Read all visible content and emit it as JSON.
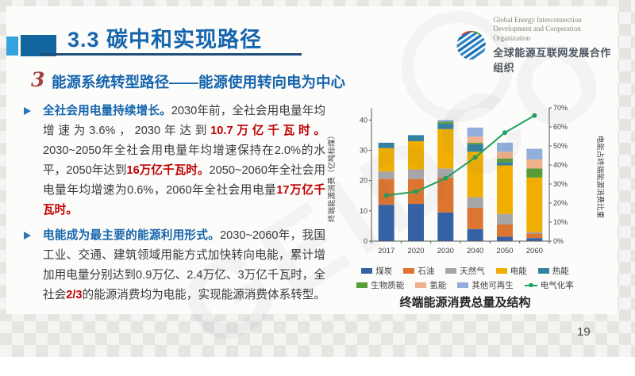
{
  "slide": {
    "page_number": "19",
    "watermark": "GEIDCO"
  },
  "header": {
    "title": "3.3 碳中和实现路径",
    "logo_line1": "Global Energy Interconnection",
    "logo_line2": "Development and Cooperation Organization",
    "logo_line3": "全球能源互联网发展合作组织"
  },
  "section": {
    "badge": "3",
    "title": "能源系统转型路径——能源使用转向电为中心"
  },
  "bullets": [
    {
      "segments": [
        {
          "text": "全社会用电量持续增长。",
          "style": "lead"
        },
        {
          "text": "2030年前，全社会用电量年均增速为3.6%，2030年达到",
          "style": "normal"
        },
        {
          "text": "10.7万亿千瓦时。",
          "style": "em"
        },
        {
          "text": "2030~2050年全社会用电量年均增速保持在2.0%的水平，2050年达到",
          "style": "normal"
        },
        {
          "text": "16万亿千瓦时。",
          "style": "em"
        },
        {
          "text": "2050~2060年全社会用电量年均增速为0.6%，2060年全社会用电量",
          "style": "normal"
        },
        {
          "text": "17万亿千瓦时。",
          "style": "em"
        }
      ]
    },
    {
      "segments": [
        {
          "text": "电能成为最主要的能源利用形式。",
          "style": "lead"
        },
        {
          "text": "2030~2060年，我国工业、交通、建筑领域用能方式加快转向电能，累计增加用电量分别达到0.9万亿、2.4万亿、3万亿千瓦时，全社会",
          "style": "normal"
        },
        {
          "text": "2/3",
          "style": "em"
        },
        {
          "text": "的能源消费均为电能，实现能源消费体系转型。",
          "style": "normal"
        }
      ]
    }
  ],
  "chart": {
    "caption": "终端能源消费总量及结构",
    "y_left_title": "终端能源消费（亿吨标煤）",
    "y_right_title": "电能占终端能源消费比重"
  },
  "chart_data": {
    "type": "bar",
    "stacked": true,
    "title": "终端能源消费总量及结构",
    "categories": [
      "2017",
      "2020",
      "2030",
      "2040",
      "2050",
      "2060"
    ],
    "series": [
      {
        "name": "煤炭",
        "color": "#3562A5",
        "values": [
          12,
          12.3,
          9.5,
          4,
          1.5,
          1
        ]
      },
      {
        "name": "石油",
        "color": "#DC7530",
        "values": [
          8.5,
          8.2,
          11.5,
          7,
          4,
          1.5
        ]
      },
      {
        "name": "天然气",
        "color": "#A6A6A6",
        "values": [
          2.5,
          3.2,
          3,
          3.5,
          3.5,
          0.5
        ]
      },
      {
        "name": "电能",
        "color": "#F0AF00",
        "values": [
          7.7,
          9.3,
          13,
          15,
          16,
          18
        ]
      },
      {
        "name": "热能",
        "color": "#35829E",
        "values": [
          1.8,
          2,
          1.8,
          2.5,
          1,
          0
        ]
      },
      {
        "name": "生物质能",
        "color": "#569D38",
        "values": [
          0,
          0,
          0.6,
          0.5,
          1.3,
          3
        ]
      },
      {
        "name": "氢能",
        "color": "#F2B08C",
        "values": [
          0,
          0,
          0,
          2,
          2.2,
          3
        ]
      },
      {
        "name": "其他可再生",
        "color": "#92AEDC",
        "values": [
          0,
          0,
          0.6,
          3,
          3,
          3.5
        ]
      }
    ],
    "line_series": {
      "name": "电气化率",
      "color": "#1FA15F",
      "axis": "right",
      "values": [
        24,
        26,
        33,
        44,
        57,
        66
      ]
    },
    "y_left": {
      "min": 0,
      "max": 44,
      "ticks": [
        0,
        10,
        20,
        30,
        40
      ],
      "title": "终端能源消费（亿吨标煤）"
    },
    "y_right": {
      "min": 0,
      "max": 70,
      "ticks": [
        0,
        10,
        20,
        30,
        40,
        50,
        60,
        70
      ],
      "unit": "%",
      "title": "电能占终端能源消费比重"
    },
    "legend_position": "bottom",
    "grid": false
  },
  "colors": {
    "title_blue": "#1565AD",
    "underline_navy": "#1F4E79",
    "highlight_red": "#C00000",
    "body_text": "#3A3A3A",
    "accent_light_blue": "#35A3DC",
    "accent_dark_blue": "#11669E",
    "line_green": "#1FA15F"
  }
}
